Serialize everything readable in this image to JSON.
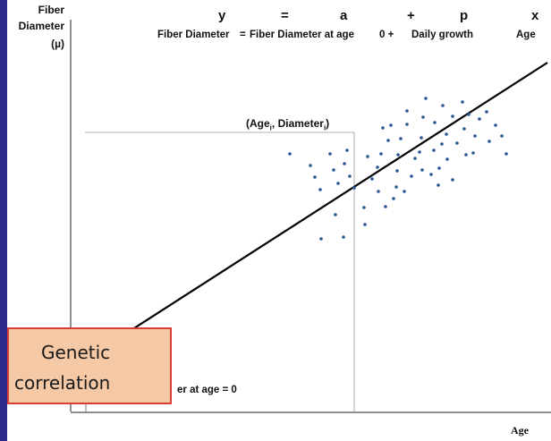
{
  "y_axis_label": {
    "line1": "Fiber",
    "line2": "Diameter",
    "line3": "(µ)"
  },
  "x_axis_label": "Age",
  "equation": {
    "symbols": [
      "y",
      "=",
      "a",
      "+",
      "p",
      "x"
    ],
    "words": [
      "Fiber Diameter",
      "=",
      "Fiber Diameter at age",
      "0 +",
      "Daily growth",
      "Age"
    ]
  },
  "point_label": {
    "prefix": "(Age",
    "sub1": "i",
    "middle": ", Diameter",
    "sub2": "i",
    "suffix": ")"
  },
  "intercept_label": "er at age = 0",
  "callout": {
    "line1": "Genetic",
    "line2": "correlation"
  },
  "colors": {
    "points": "#2b5797",
    "line": "#000000",
    "callout_fill": "#f6c9a6",
    "callout_border": "#d84037"
  }
}
